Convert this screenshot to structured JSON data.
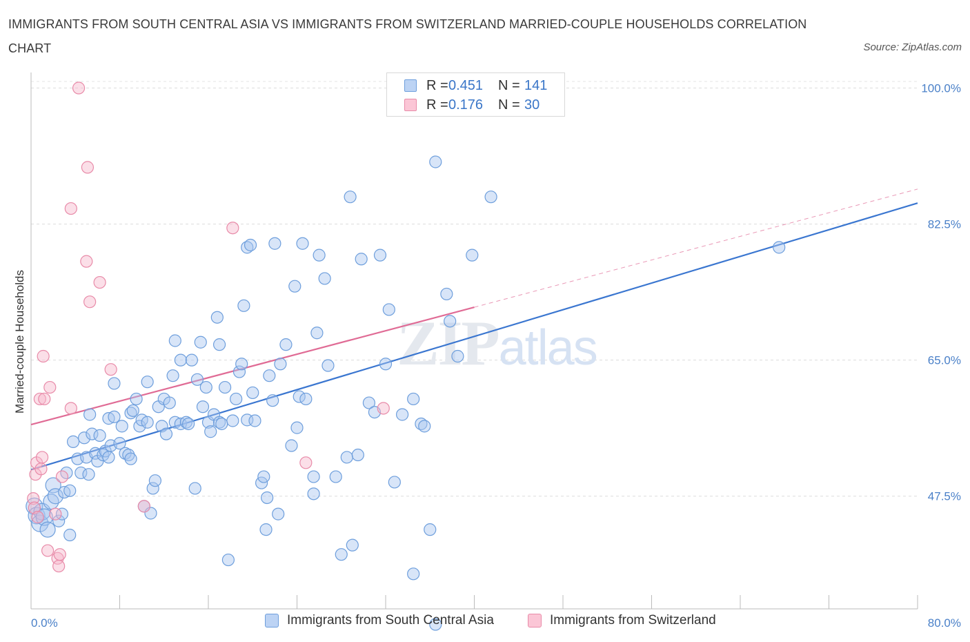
{
  "title": "IMMIGRANTS FROM SOUTH CENTRAL ASIA VS IMMIGRANTS FROM SWITZERLAND MARRIED-COUPLE HOUSEHOLDS CORRELATION CHART",
  "source": "Source: ZipAtlas.com",
  "watermark": "ZIPatlas",
  "legend": {
    "rows": [
      {
        "r_label": "R =",
        "r_value": "0.451",
        "n_label": "N =",
        "n_value": "141"
      },
      {
        "r_label": "R =",
        "r_value": "0.176",
        "n_label": "N =",
        "n_value": "30"
      }
    ]
  },
  "chart_data": {
    "type": "scatter",
    "xlabel": "",
    "ylabel": "Married-couple Households",
    "xlim": [
      0,
      80
    ],
    "ylim": [
      33,
      102
    ],
    "x_tick_labels": [
      "0.0%",
      "80.0%"
    ],
    "y_ticks": [
      47.5,
      65.0,
      82.5,
      100.0
    ],
    "y_tick_labels": [
      "47.5%",
      "65.0%",
      "82.5%",
      "100.0%"
    ],
    "grid": true,
    "legend_position": "bottom",
    "series": [
      {
        "name": "Immigrants from South Central Asia",
        "color": "#a9c6ef",
        "edge": "#6d9edc",
        "trend": {
          "x0": 0,
          "y0": 50.9,
          "x1": 80,
          "y1": 85.2,
          "color": "#3a76d0"
        },
        "points": [
          [
            0.3,
            46.2
          ],
          [
            0.5,
            45.0
          ],
          [
            0.8,
            44.0
          ],
          [
            1.0,
            45.5
          ],
          [
            1.2,
            44.8
          ],
          [
            1.5,
            43.2
          ],
          [
            1.8,
            46.8
          ],
          [
            2.0,
            48.9
          ],
          [
            2.2,
            47.5
          ],
          [
            2.5,
            44.3
          ],
          [
            2.8,
            45.2
          ],
          [
            3.0,
            48.0
          ],
          [
            3.2,
            50.5
          ],
          [
            3.5,
            42.5
          ],
          [
            3.5,
            48.2
          ],
          [
            3.8,
            54.5
          ],
          [
            4.2,
            52.3
          ],
          [
            4.5,
            50.5
          ],
          [
            4.8,
            55.0
          ],
          [
            5.0,
            52.5
          ],
          [
            5.2,
            50.3
          ],
          [
            5.3,
            58.0
          ],
          [
            5.5,
            55.5
          ],
          [
            5.8,
            53.0
          ],
          [
            6.0,
            52.0
          ],
          [
            6.2,
            55.3
          ],
          [
            6.5,
            52.8
          ],
          [
            6.7,
            53.3
          ],
          [
            7.0,
            52.5
          ],
          [
            7.0,
            57.5
          ],
          [
            7.2,
            54.0
          ],
          [
            7.5,
            62.0
          ],
          [
            7.5,
            57.7
          ],
          [
            8.0,
            54.3
          ],
          [
            8.2,
            56.5
          ],
          [
            8.5,
            53.0
          ],
          [
            8.8,
            52.8
          ],
          [
            9.0,
            52.3
          ],
          [
            9.0,
            58.2
          ],
          [
            9.2,
            58.5
          ],
          [
            9.5,
            60.0
          ],
          [
            9.8,
            56.5
          ],
          [
            10.0,
            57.3
          ],
          [
            10.2,
            46.2
          ],
          [
            10.5,
            57.0
          ],
          [
            10.5,
            62.2
          ],
          [
            10.8,
            45.3
          ],
          [
            11.0,
            48.5
          ],
          [
            11.2,
            49.5
          ],
          [
            11.5,
            59.0
          ],
          [
            11.8,
            56.5
          ],
          [
            12.0,
            60.0
          ],
          [
            12.2,
            55.5
          ],
          [
            12.5,
            59.5
          ],
          [
            12.8,
            63.0
          ],
          [
            13.0,
            57.0
          ],
          [
            13.0,
            67.5
          ],
          [
            13.5,
            65.0
          ],
          [
            13.5,
            56.8
          ],
          [
            14.0,
            57.0
          ],
          [
            14.2,
            56.8
          ],
          [
            14.5,
            65.0
          ],
          [
            14.8,
            48.5
          ],
          [
            15.0,
            62.5
          ],
          [
            15.3,
            67.3
          ],
          [
            15.5,
            59.0
          ],
          [
            15.8,
            61.5
          ],
          [
            16.0,
            57.0
          ],
          [
            16.2,
            55.8
          ],
          [
            16.5,
            58.0
          ],
          [
            16.8,
            70.5
          ],
          [
            17.0,
            57.0
          ],
          [
            17.0,
            67.0
          ],
          [
            17.2,
            56.8
          ],
          [
            17.5,
            61.5
          ],
          [
            17.8,
            39.3
          ],
          [
            18.2,
            57.2
          ],
          [
            18.5,
            60.0
          ],
          [
            18.8,
            63.5
          ],
          [
            19.0,
            64.5
          ],
          [
            19.2,
            72.0
          ],
          [
            19.5,
            57.3
          ],
          [
            19.5,
            79.5
          ],
          [
            19.8,
            79.8
          ],
          [
            20.0,
            60.8
          ],
          [
            20.2,
            57.2
          ],
          [
            20.8,
            49.2
          ],
          [
            21.0,
            50.0
          ],
          [
            21.2,
            43.2
          ],
          [
            21.3,
            47.3
          ],
          [
            21.5,
            63.0
          ],
          [
            21.8,
            59.8
          ],
          [
            22.0,
            80.0
          ],
          [
            22.3,
            45.2
          ],
          [
            22.5,
            64.5
          ],
          [
            23.0,
            67.0
          ],
          [
            23.5,
            54.0
          ],
          [
            23.8,
            74.5
          ],
          [
            24.0,
            56.3
          ],
          [
            24.2,
            60.3
          ],
          [
            24.5,
            80.0
          ],
          [
            24.8,
            60.0
          ],
          [
            25.5,
            50.0
          ],
          [
            25.5,
            47.8
          ],
          [
            25.8,
            68.5
          ],
          [
            26.0,
            78.5
          ],
          [
            26.5,
            75.5
          ],
          [
            26.8,
            64.3
          ],
          [
            27.5,
            50.0
          ],
          [
            28.0,
            40.0
          ],
          [
            28.5,
            52.5
          ],
          [
            28.8,
            86.0
          ],
          [
            29.0,
            41.2
          ],
          [
            29.5,
            52.8
          ],
          [
            29.8,
            78.0
          ],
          [
            30.5,
            59.5
          ],
          [
            31.0,
            58.3
          ],
          [
            31.5,
            78.5
          ],
          [
            32.0,
            64.5
          ],
          [
            32.3,
            71.5
          ],
          [
            32.8,
            49.3
          ],
          [
            33.5,
            58.0
          ],
          [
            34.5,
            37.5
          ],
          [
            34.5,
            60.0
          ],
          [
            35.2,
            56.8
          ],
          [
            35.5,
            56.5
          ],
          [
            36.0,
            43.2
          ],
          [
            36.5,
            90.5
          ],
          [
            36.5,
            31.0
          ],
          [
            37.5,
            73.5
          ],
          [
            37.8,
            70.0
          ],
          [
            38.5,
            65.5
          ],
          [
            39.8,
            78.5
          ],
          [
            41.5,
            86.0
          ],
          [
            67.5,
            79.5
          ]
        ],
        "sizes_note": "left-edge cluster points are larger"
      },
      {
        "name": "Immigrants from Switzerland",
        "color": "#f7b9cc",
        "edge": "#e88aa8",
        "trend": {
          "x0": 0,
          "y0": 56.7,
          "x1": 40,
          "y1": 71.8,
          "x_dash_end": 80,
          "y_dash_end": 87.0,
          "color": "#e06b95"
        },
        "points": [
          [
            0.2,
            47.2
          ],
          [
            0.3,
            46.0
          ],
          [
            0.4,
            50.3
          ],
          [
            0.5,
            51.8
          ],
          [
            0.6,
            44.8
          ],
          [
            0.8,
            60.0
          ],
          [
            0.9,
            51.0
          ],
          [
            1.0,
            52.5
          ],
          [
            1.1,
            65.5
          ],
          [
            1.2,
            60.0
          ],
          [
            1.5,
            40.5
          ],
          [
            1.7,
            61.5
          ],
          [
            2.2,
            45.2
          ],
          [
            2.4,
            39.5
          ],
          [
            2.5,
            38.5
          ],
          [
            2.6,
            40.0
          ],
          [
            2.8,
            50.0
          ],
          [
            3.6,
            58.8
          ],
          [
            3.6,
            84.5
          ],
          [
            4.3,
            100.0
          ],
          [
            5.0,
            77.7
          ],
          [
            5.1,
            89.8
          ],
          [
            5.3,
            72.5
          ],
          [
            6.2,
            75.0
          ],
          [
            7.2,
            63.8
          ],
          [
            10.2,
            46.2
          ],
          [
            18.2,
            82.0
          ],
          [
            24.8,
            51.8
          ],
          [
            31.8,
            58.8
          ]
        ]
      }
    ]
  }
}
